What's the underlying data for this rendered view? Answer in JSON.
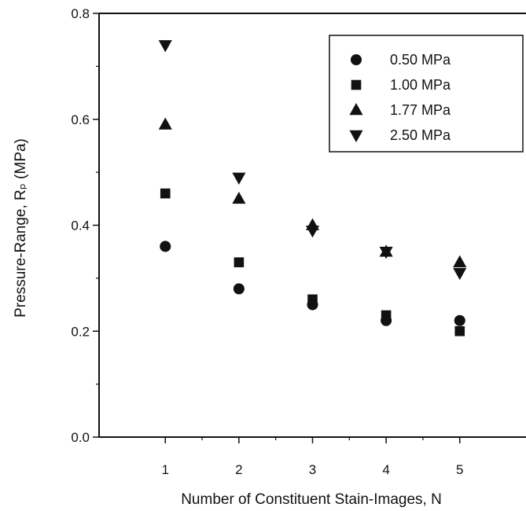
{
  "chart_data": {
    "type": "scatter",
    "title": "",
    "xlabel": "Number of Constituent Stain-Images, N",
    "ylabel": "Pressure-Range, Rₚ (MPa)",
    "x": [
      1,
      2,
      3,
      4,
      5
    ],
    "xlim": [
      0.1,
      5.9
    ],
    "ylim": [
      0,
      0.8
    ],
    "xticks": [
      "1",
      "2",
      "3",
      "4",
      "5"
    ],
    "yticks": [
      "0.0",
      "0.2",
      "0.4",
      "0.6",
      "0.8"
    ],
    "grid": false,
    "legend_position": "top-right",
    "series": [
      {
        "name": "0.50 MPa",
        "marker": "circle",
        "values": [
          0.36,
          0.28,
          0.25,
          0.22,
          0.22
        ]
      },
      {
        "name": "1.00 MPa",
        "marker": "square",
        "values": [
          0.46,
          0.33,
          0.26,
          0.23,
          0.2
        ]
      },
      {
        "name": "1.77 MPa",
        "marker": "triangle-up",
        "values": [
          0.59,
          0.45,
          0.4,
          0.35,
          0.33
        ]
      },
      {
        "name": "2.50 MPa",
        "marker": "triangle-down",
        "values": [
          0.74,
          0.49,
          0.39,
          0.35,
          0.31
        ]
      }
    ],
    "colors": {
      "marker": "#111111",
      "axis": "#111111",
      "background": "#ffffff"
    }
  }
}
